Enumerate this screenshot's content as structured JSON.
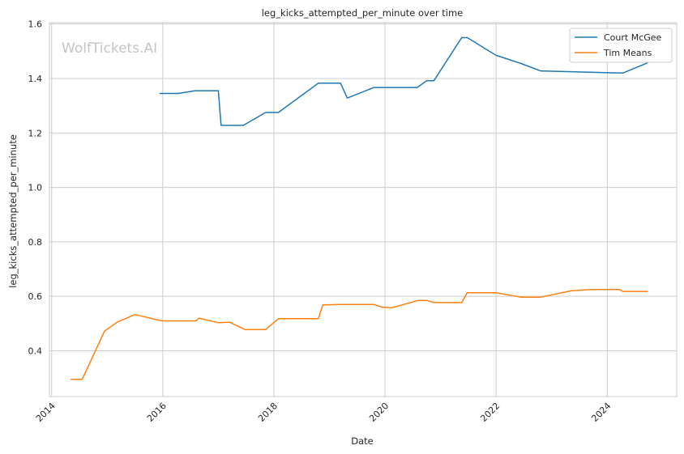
{
  "chart_data": {
    "type": "line",
    "title": "leg_kicks_attempted_per_minute over time",
    "xlabel": "Date",
    "ylabel": "leg_kicks_attempted_per_minute",
    "watermark": "WolfTickets.AI",
    "xlim": [
      2013.96,
      2025.25
    ],
    "ylim": [
      0.232,
      1.605
    ],
    "x_ticks": [
      2014,
      2016,
      2018,
      2020,
      2022,
      2024
    ],
    "x_tick_labels": [
      "2014",
      "2016",
      "2018",
      "2020",
      "2022",
      "2024"
    ],
    "y_ticks": [
      0.4,
      0.6,
      0.8,
      1.0,
      1.2,
      1.4,
      1.6
    ],
    "y_tick_labels": [
      "0.4",
      "0.6",
      "0.8",
      "1.0",
      "1.2",
      "1.4",
      "1.6"
    ],
    "grid": true,
    "legend_position": "top-right",
    "series": [
      {
        "name": "Court McGee",
        "color": "#1f77b4",
        "x": [
          2015.95,
          2016.28,
          2016.58,
          2017.0,
          2017.05,
          2017.45,
          2017.85,
          2018.08,
          2018.8,
          2019.2,
          2019.32,
          2019.8,
          2020.58,
          2020.75,
          2020.88,
          2021.38,
          2021.48,
          2022.0,
          2022.45,
          2022.8,
          2023.9,
          2024.28,
          2024.72
        ],
        "y": [
          1.345,
          1.345,
          1.355,
          1.355,
          1.228,
          1.228,
          1.275,
          1.275,
          1.383,
          1.383,
          1.328,
          1.367,
          1.367,
          1.392,
          1.392,
          1.55,
          1.55,
          1.485,
          1.455,
          1.428,
          1.422,
          1.42,
          1.457
        ]
      },
      {
        "name": "Tim Means",
        "color": "#ff7f0e",
        "x": [
          2014.35,
          2014.55,
          2014.95,
          2015.18,
          2015.5,
          2015.98,
          2016.28,
          2016.6,
          2016.65,
          2017.0,
          2017.2,
          2017.48,
          2017.85,
          2018.08,
          2018.8,
          2018.88,
          2019.2,
          2019.8,
          2019.95,
          2020.12,
          2020.6,
          2020.75,
          2020.88,
          2021.38,
          2021.48,
          2022.0,
          2022.45,
          2022.8,
          2023.35,
          2023.7,
          2024.22,
          2024.28,
          2024.72
        ],
        "y": [
          0.295,
          0.295,
          0.472,
          0.505,
          0.533,
          0.51,
          0.51,
          0.51,
          0.52,
          0.503,
          0.505,
          0.478,
          0.478,
          0.518,
          0.518,
          0.568,
          0.57,
          0.57,
          0.56,
          0.558,
          0.585,
          0.585,
          0.577,
          0.577,
          0.613,
          0.613,
          0.597,
          0.597,
          0.62,
          0.625,
          0.625,
          0.618,
          0.618
        ]
      }
    ]
  }
}
